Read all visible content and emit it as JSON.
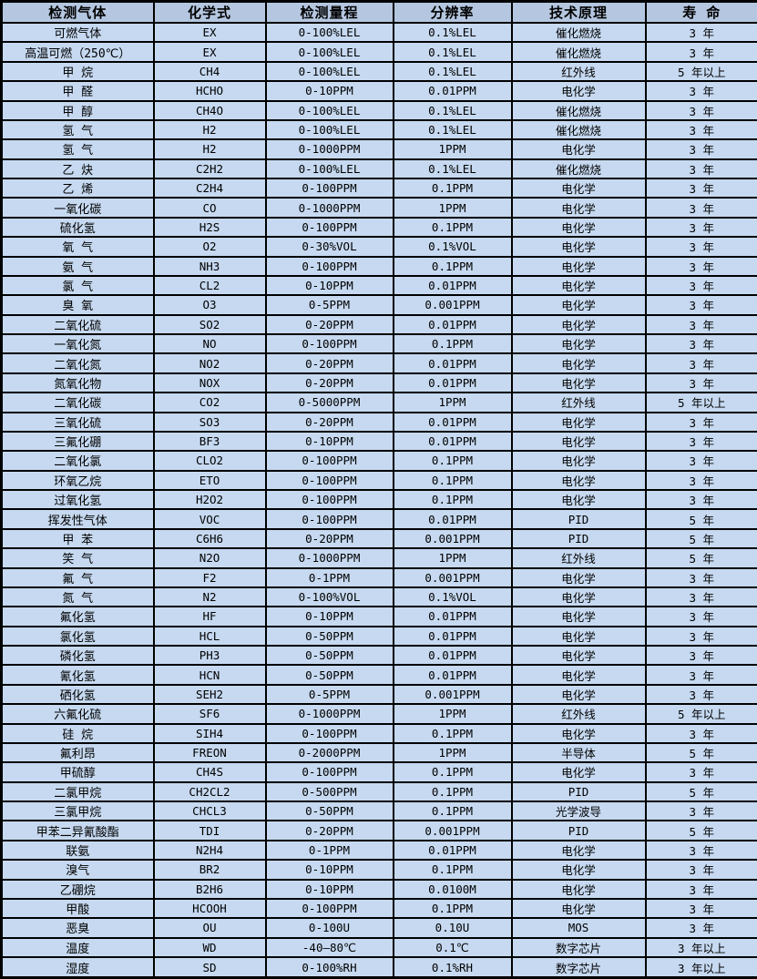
{
  "table": {
    "columns": [
      "检测气体",
      "化学式",
      "检测量程",
      "分辨率",
      "技术原理",
      "寿 命"
    ],
    "rows": [
      [
        "可燃气体",
        "EX",
        "0-100%LEL",
        "0.1%LEL",
        "催化燃烧",
        "3 年"
      ],
      [
        "高温可燃（250℃）",
        "EX",
        "0-100%LEL",
        "0.1%LEL",
        "催化燃烧",
        "3 年"
      ],
      [
        "甲 烷",
        "CH4",
        "0-100%LEL",
        "0.1%LEL",
        "红外线",
        "5 年以上"
      ],
      [
        "甲 醛",
        "HCHO",
        "0-10PPM",
        "0.01PPM",
        "电化学",
        "3 年"
      ],
      [
        "甲 醇",
        "CH4O",
        "0-100%LEL",
        "0.1%LEL",
        "催化燃烧",
        "3 年"
      ],
      [
        "氢 气",
        "H2",
        "0-100%LEL",
        "0.1%LEL",
        "催化燃烧",
        "3 年"
      ],
      [
        "氢 气",
        "H2",
        "0-1000PPM",
        "1PPM",
        "电化学",
        "3 年"
      ],
      [
        "乙 炔",
        "C2H2",
        "0-100%LEL",
        "0.1%LEL",
        "催化燃烧",
        "3 年"
      ],
      [
        "乙 烯",
        "C2H4",
        "0-100PPM",
        "0.1PPM",
        "电化学",
        "3 年"
      ],
      [
        "一氧化碳",
        "CO",
        "0-1000PPM",
        "1PPM",
        "电化学",
        "3 年"
      ],
      [
        "硫化氢",
        "H2S",
        "0-100PPM",
        "0.1PPM",
        "电化学",
        "3 年"
      ],
      [
        "氧 气",
        "O2",
        "0-30%VOL",
        "0.1%VOL",
        "电化学",
        "3 年"
      ],
      [
        "氨 气",
        "NH3",
        "0-100PPM",
        "0.1PPM",
        "电化学",
        "3 年"
      ],
      [
        "氯 气",
        "CL2",
        "0-10PPM",
        "0.01PPM",
        "电化学",
        "3 年"
      ],
      [
        "臭 氧",
        "O3",
        "0-5PPM",
        "0.001PPM",
        "电化学",
        "3 年"
      ],
      [
        "二氧化硫",
        "SO2",
        "0-20PPM",
        "0.01PPM",
        "电化学",
        "3 年"
      ],
      [
        "一氧化氮",
        "NO",
        "0-100PPM",
        "0.1PPM",
        "电化学",
        "3 年"
      ],
      [
        "二氧化氮",
        "NO2",
        "0-20PPM",
        "0.01PPM",
        "电化学",
        "3 年"
      ],
      [
        "氮氧化物",
        "NOX",
        "0-20PPM",
        "0.01PPM",
        "电化学",
        "3 年"
      ],
      [
        "二氧化碳",
        "CO2",
        "0-5000PPM",
        "1PPM",
        "红外线",
        "5 年以上"
      ],
      [
        "三氧化硫",
        "SO3",
        "0-20PPM",
        "0.01PPM",
        "电化学",
        "3 年"
      ],
      [
        "三氟化硼",
        "BF3",
        "0-10PPM",
        "0.01PPM",
        "电化学",
        "3 年"
      ],
      [
        "二氧化氯",
        "CLO2",
        "0-100PPM",
        "0.1PPM",
        "电化学",
        "3 年"
      ],
      [
        "环氧乙烷",
        "ETO",
        "0-100PPM",
        "0.1PPM",
        "电化学",
        "3 年"
      ],
      [
        "过氧化氢",
        "H2O2",
        "0-100PPM",
        "0.1PPM",
        "电化学",
        "3 年"
      ],
      [
        "挥发性气体",
        "VOC",
        "0-100PPM",
        "0.01PPM",
        "PID",
        "5 年"
      ],
      [
        "甲 苯",
        "C6H6",
        "0-20PPM",
        "0.001PPM",
        "PID",
        "5 年"
      ],
      [
        "笑 气",
        "N2O",
        "0-1000PPM",
        "1PPM",
        "红外线",
        "5 年"
      ],
      [
        "氟 气",
        "F2",
        "0-1PPM",
        "0.001PPM",
        "电化学",
        "3 年"
      ],
      [
        "氮 气",
        "N2",
        "0-100%VOL",
        "0.1%VOL",
        "电化学",
        "3 年"
      ],
      [
        "氟化氢",
        "HF",
        "0-10PPM",
        "0.01PPM",
        "电化学",
        "3 年"
      ],
      [
        "氯化氢",
        "HCL",
        "0-50PPM",
        "0.01PPM",
        "电化学",
        "3 年"
      ],
      [
        "磷化氢",
        "PH3",
        "0-50PPM",
        "0.01PPM",
        "电化学",
        "3 年"
      ],
      [
        "氰化氢",
        "HCN",
        "0-50PPM",
        "0.01PPM",
        "电化学",
        "3 年"
      ],
      [
        "硒化氢",
        "SEH2",
        "0-5PPM",
        "0.001PPM",
        "电化学",
        "3 年"
      ],
      [
        "六氟化硫",
        "SF6",
        "0-1000PPM",
        "1PPM",
        "红外线",
        "5 年以上"
      ],
      [
        "硅 烷",
        "SIH4",
        "0-100PPM",
        "0.1PPM",
        "电化学",
        "3 年"
      ],
      [
        "氟利昂",
        "FREON",
        "0-2000PPM",
        "1PPM",
        "半导体",
        "5 年"
      ],
      [
        "甲硫醇",
        "CH4S",
        "0-100PPM",
        "0.1PPM",
        "电化学",
        "3 年"
      ],
      [
        "二氯甲烷",
        "CH2CL2",
        "0-500PPM",
        "0.1PPM",
        "PID",
        "5 年"
      ],
      [
        "三氯甲烷",
        "CHCL3",
        "0-50PPM",
        "0.1PPM",
        "光学波导",
        "3 年"
      ],
      [
        "甲苯二异氰酸酯",
        "TDI",
        "0-20PPM",
        "0.001PPM",
        "PID",
        "5 年"
      ],
      [
        "联氨",
        "N2H4",
        "0-1PPM",
        "0.01PPM",
        "电化学",
        "3 年"
      ],
      [
        "溴气",
        "BR2",
        "0-10PPM",
        "0.1PPM",
        "电化学",
        "3 年"
      ],
      [
        "乙硼烷",
        "B2H6",
        "0-10PPM",
        "0.0100M",
        "电化学",
        "3 年"
      ],
      [
        "甲酸",
        "HCOOH",
        "0-100PPM",
        "0.1PPM",
        "电化学",
        "3 年"
      ],
      [
        "恶臭",
        "OU",
        "0-100U",
        "0.10U",
        "MOS",
        "3 年"
      ],
      [
        "温度",
        "WD",
        "-40—80℃",
        "0.1℃",
        "数字芯片",
        "3 年以上"
      ],
      [
        "湿度",
        "SD",
        "0-100%RH",
        "0.1%RH",
        "数字芯片",
        "3 年以上"
      ]
    ]
  },
  "colors": {
    "header_bg": "#b5c7e0",
    "row_bg": "#c6d9f0",
    "border": "#000000",
    "text": "#000000"
  }
}
